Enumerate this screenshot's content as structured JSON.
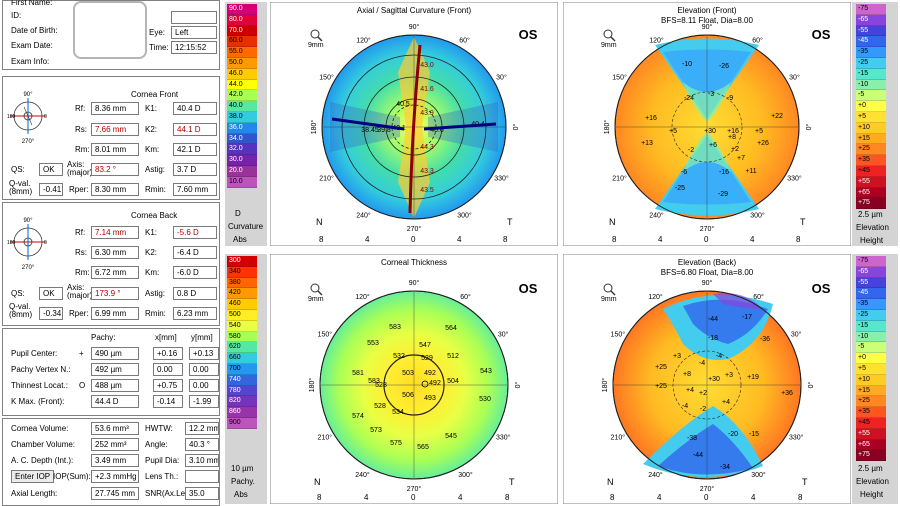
{
  "patient": {
    "name_label": "First Name:",
    "id_label": "ID:",
    "dob_label": "Date of Birth:",
    "exam_date_label": "Exam Date:",
    "exam_info_label": "Exam Info:",
    "eye_label": "Eye:",
    "eye_value": "Left",
    "time_label": "Time:",
    "time_value": "12:15:52"
  },
  "front": {
    "title": "Cornea Front",
    "rf_label": "Rf:",
    "rf": "8.36 mm",
    "rs_label": "Rs:",
    "rs": "7.66 mm",
    "rm_label": "Rm:",
    "rm": "8.01 mm",
    "k1_label": "K1:",
    "k1": "40.4 D",
    "k2_label": "K2:",
    "k2": "44.1 D",
    "km_label": "Km:",
    "km": "42.1 D",
    "qs_label": "QS:",
    "qs": "OK",
    "axis_label": "Axis: (major)",
    "axis": "83.2 °",
    "astig_label": "Astig:",
    "astig": "3.7 D",
    "qval_label": "Q-val. (8mm)",
    "qval": "-0.41",
    "rper_label": "Rper:",
    "rper": "8.30 mm",
    "rmin_label": "Rmin:",
    "rmin": "7.60 mm",
    "dial": {
      "top": "90°",
      "left": "180",
      "right": "0",
      "bottom": "270°"
    }
  },
  "back": {
    "title": "Cornea Back",
    "rf_label": "Rf:",
    "rf": "7.14 mm",
    "rs_label": "Rs:",
    "rs": "6.30 mm",
    "rm_label": "Rm:",
    "rm": "6.72 mm",
    "k1_label": "K1:",
    "k1": "-5.6 D",
    "k2_label": "K2:",
    "k2": "-6.4 D",
    "km_label": "Km:",
    "km": "-6.0 D",
    "qs_label": "QS:",
    "qs": "OK",
    "axis_label": "Axis: (major)",
    "axis": "173.9 °",
    "astig_label": "Astig:",
    "astig": "0.8 D",
    "qval_label": "Q-val. (8mm)",
    "qval": "-0.34",
    "rper_label": "Rper:",
    "rper": "6.99 mm",
    "rmin_label": "Rmin:",
    "rmin": "6.23 mm",
    "dial": {
      "top": "90°",
      "left": "180",
      "right": "0",
      "bottom": "270°"
    }
  },
  "pachy": {
    "pachy_label": "Pachy:",
    "x_label": "x[mm]",
    "y_label": "y[mm]",
    "rows": [
      {
        "label": "Pupil Center:",
        "sym": "+",
        "val": "490 µm",
        "x": "+0.16",
        "y": "+0.13"
      },
      {
        "label": "Pachy Vertex N.:",
        "sym": "",
        "val": "492 µm",
        "x": "0.00",
        "y": "0.00"
      },
      {
        "label": "Thinnest Locat.:",
        "sym": "O",
        "val": "488 µm",
        "x": "+0.75",
        "y": "0.00"
      },
      {
        "label": "K Max. (Front):",
        "sym": "",
        "val": "44.4 D",
        "x": "-0.14",
        "y": "-1.99"
      }
    ]
  },
  "volume": {
    "cornea_volume_label": "Cornea Volume:",
    "cornea_volume": "53.6 mm³",
    "hwtw_label": "HWTW:",
    "hwtw": "12.2 mm",
    "chamber_volume_label": "Chamber Volume:",
    "chamber_volume": "252 mm³",
    "angle_label": "Angle:",
    "angle": "40.3 °",
    "acdepth_label": "A. C. Depth (Int.):",
    "acdepth": "3.49 mm",
    "pupil_dia_label": "Pupil Dia:",
    "pupil_dia": "3.10 mm",
    "enter_iop": "Enter IOP",
    "iop_sum_label": "IOP(Sum):",
    "iop_sum": "+2.3 mmHg",
    "lens_th_label": "Lens Th.:",
    "lens_th": "",
    "axial_length_label": "Axial Length:",
    "axial_length": "27.745 mm",
    "snr_label": "SNR(Ax.Le",
    "snr": "35.0"
  },
  "scales": {
    "curvature": {
      "values": [
        "90.0",
        "80.0",
        "70.0",
        "60.0",
        "55.0",
        "50.0",
        "46.0",
        "44.0",
        "42.0",
        "40.0",
        "38.0",
        "36.0",
        "34.0",
        "32.0",
        "30.0",
        "20.0",
        "10.0"
      ],
      "colors": [
        "#d4007a",
        "#e0003a",
        "#cc0000",
        "#e63000",
        "#ff6a00",
        "#ff9900",
        "#ffcc00",
        "#ffff00",
        "#aaff55",
        "#55e8a0",
        "#33ccdd",
        "#2288ee",
        "#3355cc",
        "#5533bb",
        "#7722aa",
        "#993399",
        "#bb55bb"
      ],
      "unit": "D",
      "label": "Curvature",
      "mode": "Abs"
    },
    "elev_front": {
      "values": [
        "-75",
        "-65",
        "-55",
        "-45",
        "-35",
        "-25",
        "-15",
        "-10",
        "-5",
        "+0",
        "+5",
        "+10",
        "+15",
        "+25",
        "+35",
        "+45",
        "+55",
        "+65",
        "+75"
      ],
      "colors": [
        "#cc66cc",
        "#8844dd",
        "#4444dd",
        "#3366ee",
        "#3399ff",
        "#44ccee",
        "#55e8cc",
        "#88f0aa",
        "#ccff77",
        "#ffff44",
        "#ffe033",
        "#ffcc22",
        "#ffaa22",
        "#ff8822",
        "#ff5522",
        "#ee2222",
        "#cc1122",
        "#aa0022",
        "#880022"
      ],
      "unit": "2.5 µm",
      "label": "Elevation",
      "mode": "Height"
    },
    "pachy": {
      "values": [
        "300",
        "340",
        "380",
        "420",
        "460",
        "500",
        "540",
        "580",
        "620",
        "660",
        "700",
        "740",
        "780",
        "820",
        "860",
        "900"
      ],
      "colors": [
        "#d40000",
        "#ff3300",
        "#ff6600",
        "#ff9900",
        "#ffcc00",
        "#ffee22",
        "#e8ff44",
        "#aaff55",
        "#55e8a0",
        "#33ccdd",
        "#2299ee",
        "#3366dd",
        "#5544cc",
        "#7733bb",
        "#9933aa",
        "#bb55bb"
      ],
      "unit": "10 µm",
      "label": "Pachy.",
      "mode": "Abs"
    },
    "elev_back": {
      "values": [
        "-75",
        "-65",
        "-55",
        "-45",
        "-35",
        "-25",
        "-15",
        "-10",
        "-5",
        "+0",
        "+5",
        "+10",
        "+15",
        "+25",
        "+35",
        "+45",
        "+55",
        "+65",
        "+75"
      ],
      "colors": [
        "#cc66cc",
        "#8844dd",
        "#4444dd",
        "#3366ee",
        "#3399ff",
        "#44ccee",
        "#55e8cc",
        "#88f0aa",
        "#ccff77",
        "#ffff44",
        "#ffe033",
        "#ffcc22",
        "#ffaa22",
        "#ff8822",
        "#ff5522",
        "#ee2222",
        "#cc1122",
        "#aa0022",
        "#880022"
      ],
      "unit": "2.5 µm",
      "label": "Elevation",
      "mode": "Height"
    }
  },
  "maps": {
    "axial": {
      "title": "Axial / Sagittal Curvature (Front)",
      "eye": "OS",
      "size": "9mm",
      "values": [
        "43.0",
        "41.6",
        "40.5",
        "43.9",
        "40.1",
        "40.6",
        "40.4",
        "38.45",
        "39.8",
        "44.3",
        "43.3",
        "43.5"
      ]
    },
    "elev_front": {
      "title": "Elevation (Front)",
      "subtitle": "BFS=8.11 Float, Dia=8.00",
      "eye": "OS",
      "size": "9mm",
      "values": [
        "-10",
        "-26",
        "-3",
        "-24",
        "-9",
        "+16",
        "+22",
        "+13",
        "+5",
        "+5",
        "+16",
        "+26",
        "+8",
        "+30",
        "-2",
        "+2",
        "+6",
        "+7",
        "+11",
        "-6",
        "-16",
        "-25",
        "-29"
      ]
    },
    "thickness": {
      "title": "Corneal Thickness",
      "eye": "OS",
      "size": "9mm",
      "values": [
        "583",
        "564",
        "553",
        "547",
        "532",
        "529",
        "512",
        "503",
        "492",
        "504",
        "492",
        "583",
        "581",
        "543",
        "528",
        "528",
        "506",
        "493",
        "530",
        "574",
        "534",
        "573",
        "575",
        "545",
        "565"
      ]
    },
    "elev_back": {
      "title": "Elevation (Back)",
      "subtitle": "BFS=6.80 Float, Dia=8.00",
      "eye": "OS",
      "size": "9mm",
      "values": [
        "-44",
        "-17",
        "-18",
        "-36",
        "+3",
        "-4",
        "-4",
        "+25",
        "+19",
        "+25",
        "+8",
        "+4",
        "+30",
        "+2",
        "+3",
        "+36",
        "-4",
        "+4",
        "-2",
        "-38",
        "-20",
        "-15",
        "-44",
        "-34"
      ]
    }
  },
  "compass": {
    "n90": "90°",
    "n120": "120°",
    "n60": "60°",
    "n150": "150°",
    "n30": "30°",
    "n180": "180°",
    "n0": "0°",
    "n210": "210°",
    "n330": "330°",
    "n240": "240°",
    "n300": "300°",
    "n270": "270°",
    "N": "N",
    "T": "T",
    "ticks": [
      "8",
      "4",
      "0",
      "4",
      "8"
    ]
  }
}
